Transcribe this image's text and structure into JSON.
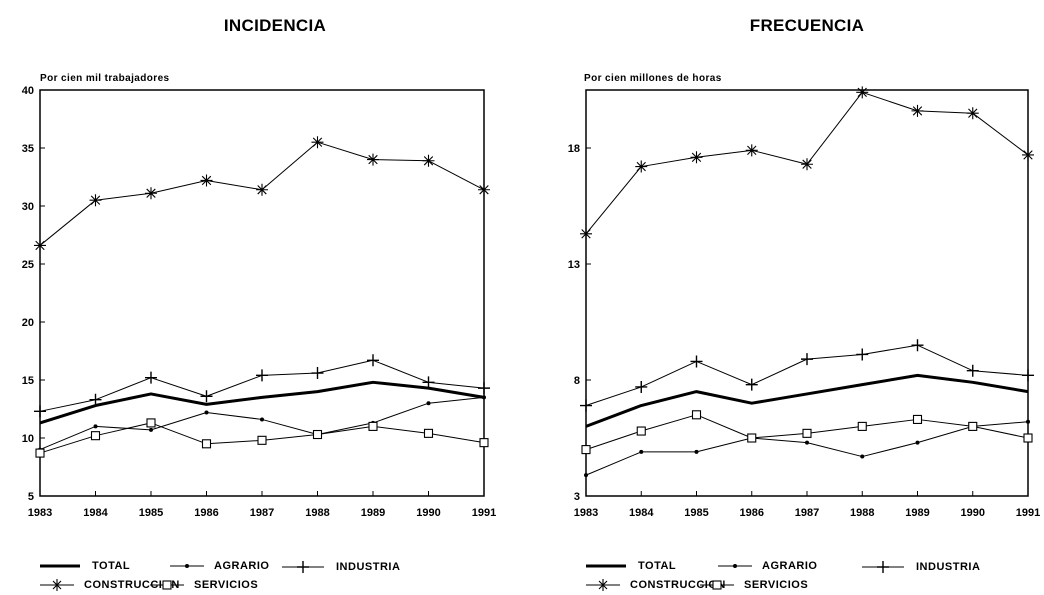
{
  "chart_data": [
    {
      "type": "line",
      "title": "INCIDENCIA",
      "ylabel": "Por cien mil trabajadores",
      "xlabel": "",
      "ylim": [
        5,
        40
      ],
      "yticks": [
        "5",
        "10",
        "15",
        "20",
        "25",
        "30",
        "35",
        "40"
      ],
      "x": [
        "1983",
        "1984",
        "1985",
        "1986",
        "1987",
        "1988",
        "1989",
        "1990",
        "1991"
      ],
      "grid": false,
      "series": [
        {
          "name": "TOTAL",
          "marker": "none",
          "width": 3,
          "values": [
            11.3,
            12.8,
            13.8,
            12.9,
            13.5,
            14.0,
            14.8,
            14.3,
            13.5
          ]
        },
        {
          "name": "AGRARIO",
          "marker": "dot",
          "width": 1,
          "values": [
            9.0,
            11.0,
            10.7,
            12.2,
            11.6,
            10.3,
            11.3,
            13.0,
            13.5
          ]
        },
        {
          "name": "INDUSTRIA",
          "marker": "plus",
          "width": 1,
          "values": [
            12.3,
            13.3,
            15.2,
            13.6,
            15.4,
            15.6,
            16.7,
            14.8,
            14.3
          ]
        },
        {
          "name": "CONSTRUCCION",
          "marker": "star",
          "width": 1,
          "values": [
            26.6,
            30.5,
            31.1,
            32.2,
            31.4,
            35.5,
            34.0,
            33.9,
            31.4
          ]
        },
        {
          "name": "SERVICIOS",
          "marker": "square",
          "width": 1,
          "values": [
            8.7,
            10.2,
            11.3,
            9.5,
            9.8,
            10.3,
            11.0,
            10.4,
            9.6
          ]
        }
      ]
    },
    {
      "type": "line",
      "title": "FRECUENCIA",
      "ylabel": "Por cien millones de horas",
      "xlabel": "",
      "ylim": [
        3,
        20.5
      ],
      "yticks": [
        "3",
        "8",
        "13",
        "18"
      ],
      "x": [
        "1983",
        "1984",
        "1985",
        "1986",
        "1987",
        "1988",
        "1989",
        "1990",
        "1991"
      ],
      "grid": false,
      "series": [
        {
          "name": "TOTAL",
          "marker": "none",
          "width": 3,
          "values": [
            6.0,
            6.9,
            7.5,
            7.0,
            7.4,
            7.8,
            8.2,
            7.9,
            7.5
          ]
        },
        {
          "name": "AGRARIO",
          "marker": "dot",
          "width": 1,
          "values": [
            3.9,
            4.9,
            4.9,
            5.5,
            5.3,
            4.7,
            5.3,
            6.0,
            6.2
          ]
        },
        {
          "name": "INDUSTRIA",
          "marker": "plus",
          "width": 1,
          "values": [
            6.9,
            7.7,
            8.8,
            7.8,
            8.9,
            9.1,
            9.5,
            8.4,
            8.2
          ]
        },
        {
          "name": "CONSTRUCCION",
          "marker": "star",
          "width": 1,
          "values": [
            14.3,
            17.2,
            17.6,
            17.9,
            17.3,
            20.4,
            19.6,
            19.5,
            17.7
          ]
        },
        {
          "name": "SERVICIOS",
          "marker": "square",
          "width": 1,
          "values": [
            5.0,
            5.8,
            6.5,
            5.5,
            5.7,
            6.0,
            6.3,
            6.0,
            5.5
          ]
        }
      ]
    }
  ],
  "legend": {
    "total": "TOTAL",
    "agrario": "AGRARIO",
    "industria": "INDUSTRIA",
    "construccion": "CONSTRUCCION",
    "servicios": "SERVICIOS"
  }
}
